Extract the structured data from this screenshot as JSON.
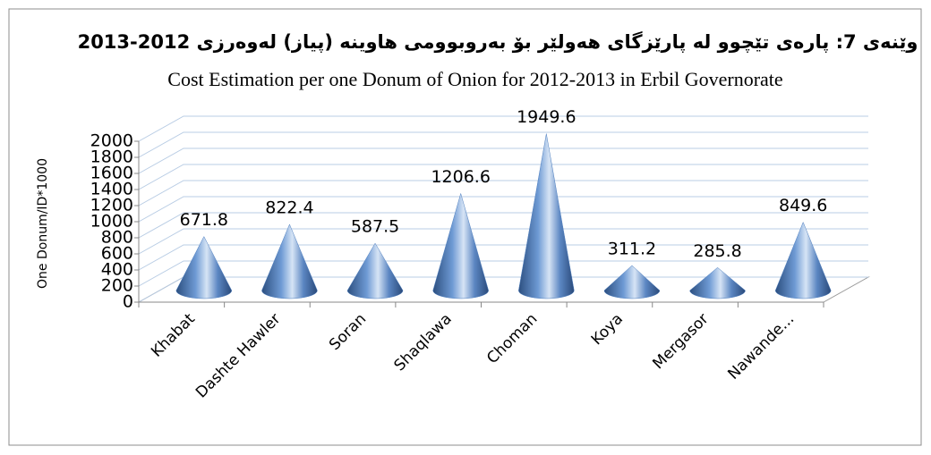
{
  "chart_data": {
    "type": "cone",
    "title": "وێنەی 7: پارەی تێچوو لە پارێزگای هەولێر بۆ بەروبوومی هاوینە (پیاز) لەوەرزی 2012-2013",
    "subtitle": "Cost Estimation per one Donum of Onion for 2012-2013 in Erbil Governorate",
    "y_label": "One Donum/ID*1000",
    "categories": [
      "Khabat",
      "Dashte Hawler",
      "Soran",
      "Shaqlawa",
      "Choman",
      "Koya",
      "Mergasor",
      "Nawande..."
    ],
    "values": [
      671.8,
      822.4,
      587.5,
      1206.6,
      1949.6,
      311.2,
      285.8,
      849.6
    ],
    "color": "#4f7fbf",
    "ylim": [
      0,
      2000
    ],
    "yticks": [
      0,
      200,
      400,
      600,
      800,
      1000,
      1200,
      1400,
      1600,
      1800,
      2000
    ],
    "grid": true
  }
}
